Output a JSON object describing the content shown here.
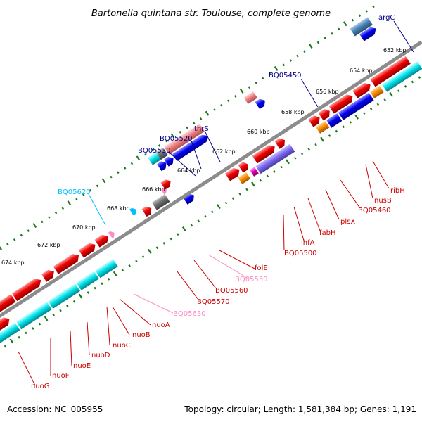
{
  "title": "Bartonella quintana str. Toulouse, complete genome",
  "footer": {
    "accession": "Accession: NC_005955",
    "summary": "Topology: circular; Length: 1,581,384 bp; Genes: 1,191"
  },
  "ticks": [
    {
      "label": "652 kbp",
      "kbp": 652
    },
    {
      "label": "654 kbp",
      "kbp": 654
    },
    {
      "label": "656 kbp",
      "kbp": 656
    },
    {
      "label": "658 kbp",
      "kbp": 658
    },
    {
      "label": "660 kbp",
      "kbp": 660
    },
    {
      "label": "662 kbp",
      "kbp": 662
    },
    {
      "label": "664 kbp",
      "kbp": 664
    },
    {
      "label": "666 kbp",
      "kbp": 666
    },
    {
      "label": "668 kbp",
      "kbp": 668
    },
    {
      "label": "670 kbp",
      "kbp": 670
    },
    {
      "label": "672 kbp",
      "kbp": 672
    },
    {
      "label": "674 kbp",
      "kbp": 674
    }
  ],
  "labels": [
    {
      "text": "argC",
      "color": "#00008b"
    },
    {
      "text": "BQ05450",
      "color": "#00008b"
    },
    {
      "text": "thrS",
      "color": "#00008b"
    },
    {
      "text": "BQ05520",
      "color": "#00008b"
    },
    {
      "text": "BQ05530",
      "color": "#00008b"
    },
    {
      "text": "BQ05620",
      "color": "#00bfff"
    },
    {
      "text": "ribH",
      "color": "#cc0000"
    },
    {
      "text": "nusB",
      "color": "#cc0000"
    },
    {
      "text": "BQ05460",
      "color": "#cc0000"
    },
    {
      "text": "plsX",
      "color": "#cc0000"
    },
    {
      "text": "fabH",
      "color": "#cc0000"
    },
    {
      "text": "ihfA",
      "color": "#cc0000"
    },
    {
      "text": "BQ05500",
      "color": "#cc0000"
    },
    {
      "text": "folE",
      "color": "#cc0000"
    },
    {
      "text": "BQ05550",
      "color": "#ff8cc6"
    },
    {
      "text": "BQ05560",
      "color": "#cc0000"
    },
    {
      "text": "BQ05570",
      "color": "#cc0000"
    },
    {
      "text": "BQ05630",
      "color": "#ff8cc6"
    },
    {
      "text": "nuoA",
      "color": "#cc0000"
    },
    {
      "text": "nuoB",
      "color": "#cc0000"
    },
    {
      "text": "nuoC",
      "color": "#cc0000"
    },
    {
      "text": "nuoD",
      "color": "#cc0000"
    },
    {
      "text": "nuoE",
      "color": "#cc0000"
    },
    {
      "text": "nuoF",
      "color": "#cc0000"
    },
    {
      "text": "nuoG",
      "color": "#cc0000"
    }
  ],
  "colors": {
    "forward_cds": "#0000ee",
    "reverse_cds": "#ee0000",
    "trna": "#00e5ee",
    "pseudo": "#ff9ab8",
    "orange": "#ff8c00",
    "purple": "#7b68ee",
    "gray": "#707070",
    "backbone": "#8c8c8c",
    "ticks": "#1a7a1a"
  }
}
